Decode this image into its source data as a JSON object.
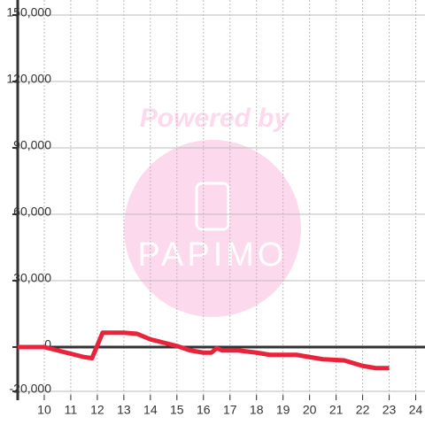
{
  "chart_data": {
    "type": "line",
    "x": [
      9,
      10,
      10.5,
      11,
      11.5,
      11.8,
      12.2,
      13,
      13.5,
      14,
      15,
      15.5,
      16,
      16.3,
      16.5,
      16.7,
      17.3,
      18,
      18.5,
      19.5,
      20,
      20.5,
      21.3,
      22,
      22.5,
      23
    ],
    "series": [
      {
        "color": "#e8233a",
        "values": [
          0,
          0,
          -1500,
          -3000,
          -4500,
          -5000,
          6500,
          6500,
          6000,
          3500,
          500,
          -1500,
          -2500,
          -2500,
          -500,
          -1500,
          -1500,
          -2500,
          -3500,
          -3500,
          -4500,
          -5500,
          -6000,
          -8500,
          -9500,
          -9500
        ]
      }
    ],
    "xlim": [
      9,
      24.35
    ],
    "xticks": [
      10,
      11,
      12,
      13,
      14,
      15,
      16,
      17,
      18,
      19,
      20,
      21,
      22,
      23,
      24
    ],
    "ylim": [
      -24000,
      156800
    ],
    "yticks": [
      {
        "value": -20000,
        "label": "-20,000"
      },
      0,
      {
        "value": 30000,
        "label": "30,000"
      },
      {
        "value": 60000,
        "label": "60,000"
      },
      {
        "value": 90000,
        "label": "90,000"
      },
      {
        "value": 120000,
        "label": "120,000"
      },
      {
        "value": 150000,
        "label": "150,000"
      }
    ],
    "grid": true
  },
  "watermark": {
    "text": "Powered by",
    "logo": "PAPIMO"
  }
}
